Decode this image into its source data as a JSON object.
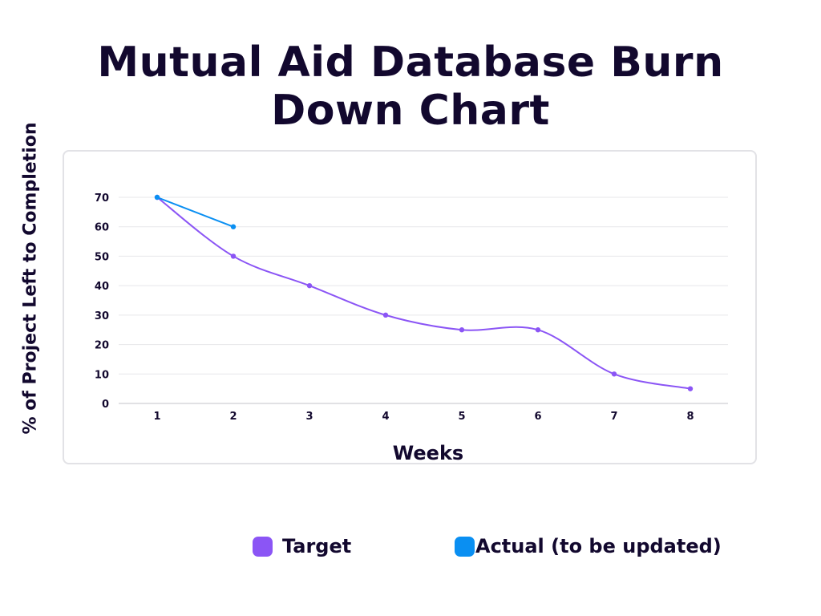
{
  "title": "Mutual Aid Database Burn Down Chart",
  "chart_data": {
    "type": "line",
    "xlabel": "Weeks",
    "ylabel": "% of Project Left to Completion",
    "x": [
      1,
      2,
      3,
      4,
      5,
      6,
      7,
      8
    ],
    "ylim": [
      0,
      70
    ],
    "y_ticks": [
      0,
      10,
      20,
      30,
      40,
      50,
      60,
      70
    ],
    "grid": true,
    "legend_position": "bottom",
    "series": [
      {
        "name": "Target",
        "color": "#8b55f5",
        "x": [
          1,
          2,
          3,
          4,
          5,
          6,
          7,
          8
        ],
        "values": [
          70,
          50,
          40,
          30,
          25,
          25,
          10,
          5
        ]
      },
      {
        "name": "Actual (to be updated)",
        "color": "#0a8ff2",
        "x": [
          1,
          2
        ],
        "values": [
          70,
          60
        ]
      }
    ]
  }
}
